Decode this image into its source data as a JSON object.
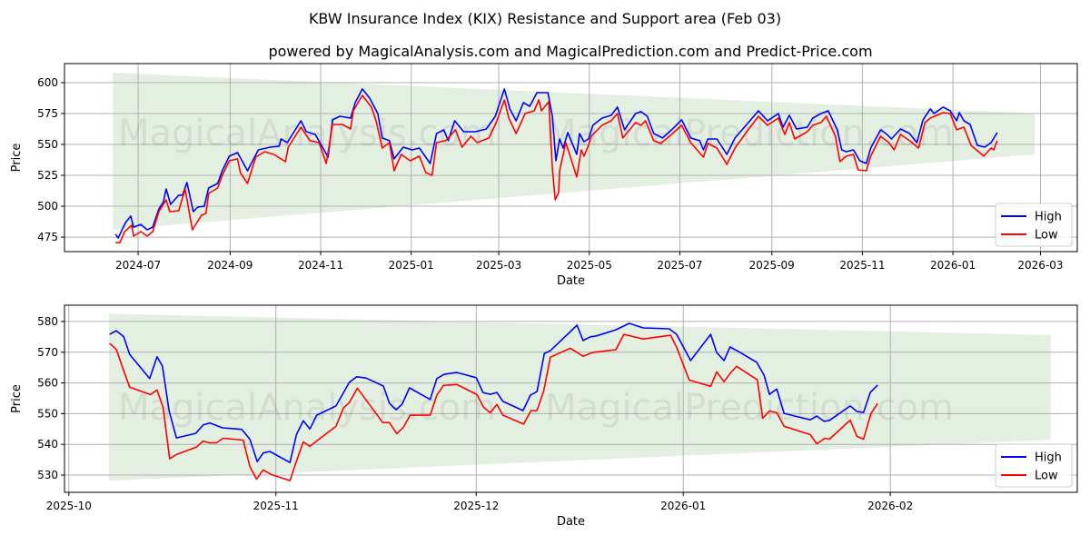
{
  "title": "KBW Insurance Index (KIX) Resistance and Support area (Feb 03)",
  "subtitle": "powered by MagicalAnalysis.com and MagicalPrediction.com and Predict-Price.com",
  "watermarks": [
    "MagicalAnalysis.com",
    "MagicalPrediction.com"
  ],
  "colors": {
    "high": "#0000ff",
    "low": "#ff0000",
    "band": "#e3efe1",
    "grid": "#b0b0b0"
  },
  "chart_data": [
    {
      "type": "line",
      "xlabel": "Date",
      "ylabel": "Price",
      "x_units": "days since 2024-07-01",
      "xlim": [
        -49.6,
        632.8
      ],
      "ylim": [
        463.3,
        615.4
      ],
      "grid": true,
      "legend": "bottom-right",
      "xticks": [
        {
          "v": 0,
          "label": "2024-07"
        },
        {
          "v": 62,
          "label": "2024-09"
        },
        {
          "v": 123,
          "label": "2024-11"
        },
        {
          "v": 184,
          "label": "2025-01"
        },
        {
          "v": 243,
          "label": "2025-03"
        },
        {
          "v": 304,
          "label": "2025-05"
        },
        {
          "v": 365,
          "label": "2025-07"
        },
        {
          "v": 427,
          "label": "2025-09"
        },
        {
          "v": 488,
          "label": "2025-11"
        },
        {
          "v": 549,
          "label": "2026-01"
        },
        {
          "v": 608,
          "label": "2026-03"
        }
      ],
      "yticks": [
        475,
        500,
        525,
        550,
        575,
        600
      ],
      "band": {
        "x": [
          -17,
          604
        ],
        "upper": [
          608,
          575
        ],
        "lower": [
          481,
          542
        ]
      },
      "series": [
        {
          "name": "High",
          "color": "#0000ff",
          "x": [
            -15.2,
            -13.4,
            -8.5,
            -4.9,
            -3.0,
            1.8,
            6.1,
            9.8,
            14.0,
            17.1,
            18.9,
            21.9,
            27.4,
            29.9,
            32.9,
            37.2,
            40.2,
            44.5,
            47.5,
            53.6,
            56.7,
            61.5,
            67.0,
            73.7,
            81.0,
            89.0,
            95.1,
            96.3,
            100.5,
            109.7,
            113.3,
            119.4,
            128.0,
            131.0,
            135.9,
            143.2,
            146.3,
            151.1,
            156.0,
            161.5,
            164.5,
            169.4,
            172.5,
            178.6,
            184.6,
            189.5,
            196.8,
            201.1,
            206.0,
            209.0,
            213.3,
            219.4,
            227.3,
            234.6,
            240.7,
            246.8,
            250.5,
            254.7,
            259.6,
            263.9,
            268.7,
            276.1,
            279.1,
            281.5,
            284.0,
            286.4,
            289.5,
            295.6,
            297.4,
            300.4,
            303.5,
            306.5,
            312.6,
            318.7,
            323.0,
            327.8,
            335.2,
            338.8,
            343.1,
            347.4,
            353.4,
            359.5,
            366.2,
            372.3,
            378.4,
            380.9,
            383.9,
            390.0,
            396.7,
            402.2,
            410.1,
            418.0,
            424.1,
            431.4,
            434.5,
            438.8,
            443.6,
            450.9,
            454.6,
            460.1,
            465.0,
            471.1,
            474.1,
            477.2,
            482.0,
            486.3,
            490.6,
            493.6,
            500.3,
            504.6,
            507.6,
            513.7,
            519.8,
            524.7,
            528.9,
            533.8,
            536.3,
            542.4,
            547.2,
            551.5,
            553.3,
            556.4,
            560.6,
            565.5,
            570.4,
            574.7,
            578.9
          ],
          "y": [
            477.3,
            474.3,
            486.8,
            492.0,
            483.1,
            485.3,
            480.9,
            483.1,
            497.8,
            503.7,
            514.0,
            501.5,
            508.9,
            508.9,
            519.2,
            495.6,
            499.3,
            500.0,
            514.7,
            518.4,
            528.7,
            540.5,
            543.4,
            528.7,
            545.6,
            547.8,
            548.6,
            554.4,
            551.5,
            569.1,
            560.3,
            558.1,
            539.7,
            569.9,
            572.8,
            571.3,
            583.8,
            594.9,
            587.5,
            575.0,
            555.2,
            553.0,
            538.3,
            547.8,
            545.6,
            547.1,
            534.6,
            558.8,
            561.8,
            553.0,
            569.1,
            560.3,
            560.3,
            562.5,
            572.8,
            594.9,
            578.7,
            569.1,
            583.8,
            580.9,
            591.9,
            591.9,
            572.8,
            536.8,
            554.4,
            547.1,
            559.6,
            541.9,
            558.8,
            552.2,
            554.4,
            565.5,
            571.3,
            573.5,
            580.2,
            561.8,
            575.0,
            576.5,
            572.8,
            558.8,
            555.2,
            561.8,
            569.9,
            555.2,
            553.0,
            545.6,
            554.4,
            554.4,
            541.9,
            555.2,
            566.2,
            577.2,
            569.1,
            575.0,
            564.0,
            573.5,
            562.5,
            564.0,
            571.3,
            575.0,
            577.2,
            561.8,
            545.6,
            544.1,
            545.6,
            536.8,
            534.6,
            547.1,
            561.8,
            558.1,
            554.4,
            562.5,
            558.8,
            551.5,
            569.9,
            578.7,
            575.0,
            580.2,
            577.2,
            569.1,
            575.7,
            569.1,
            566.2,
            549.3,
            547.8,
            551.5,
            559.6
          ]
        },
        {
          "name": "Low",
          "color": "#ff0000",
          "x": [
            -15.2,
            -12.2,
            -9.1,
            -4.3,
            -3.0,
            1.8,
            6.1,
            9.8,
            14.0,
            18.9,
            21.3,
            27.4,
            31.7,
            36.6,
            42.7,
            45.7,
            47.5,
            53.6,
            56.7,
            61.5,
            67.0,
            68.9,
            73.7,
            79.2,
            85.3,
            91.4,
            99.3,
            101.2,
            109.7,
            115.8,
            121.9,
            126.8,
            131.0,
            137.7,
            143.2,
            145.0,
            151.1,
            157.2,
            160.3,
            164.5,
            169.4,
            172.5,
            177.3,
            183.4,
            189.5,
            193.8,
            198.1,
            201.1,
            207.2,
            213.9,
            218.2,
            224.3,
            228.5,
            236.4,
            241.3,
            246.8,
            249.8,
            254.7,
            260.8,
            266.9,
            270.0,
            271.8,
            276.7,
            279.1,
            281.0,
            283.4,
            284.0,
            288.2,
            295.6,
            298.6,
            300.4,
            303.5,
            305.3,
            312.6,
            318.7,
            323.0,
            326.6,
            335.2,
            338.8,
            341.9,
            347.4,
            352.2,
            359.5,
            366.2,
            372.3,
            380.9,
            383.9,
            390.0,
            396.7,
            402.2,
            410.1,
            418.0,
            424.1,
            431.4,
            435.7,
            438.8,
            442.4,
            450.9,
            454.6,
            460.1,
            463.7,
            469.8,
            472.9,
            477.2,
            482.0,
            485.1,
            490.6,
            493.6,
            500.3,
            505.8,
            509.4,
            513.7,
            519.8,
            525.9,
            530.2,
            533.8,
            542.4,
            547.2,
            551.5,
            556.4,
            561.2,
            569.8,
            574.7,
            576.5,
            578.9
          ],
          "y": [
            470.6,
            470.6,
            479.5,
            484.6,
            475.8,
            479.5,
            475.8,
            479.5,
            495.6,
            505.2,
            495.6,
            496.4,
            514.0,
            480.9,
            492.7,
            494.2,
            510.3,
            514.7,
            525.0,
            536.8,
            538.3,
            527.2,
            518.4,
            539.7,
            544.1,
            541.9,
            536.1,
            547.8,
            564.0,
            553.0,
            551.5,
            534.6,
            566.2,
            566.2,
            562.5,
            577.2,
            589.7,
            580.2,
            569.1,
            547.1,
            551.5,
            528.7,
            541.9,
            536.8,
            540.5,
            527.2,
            525.0,
            551.5,
            553.0,
            561.8,
            547.8,
            556.6,
            551.5,
            555.2,
            567.7,
            586.0,
            571.3,
            558.8,
            575.0,
            577.2,
            586.0,
            577.2,
            584.6,
            530.9,
            505.2,
            511.1,
            528.7,
            551.5,
            523.6,
            545.6,
            540.5,
            549.3,
            556.6,
            565.5,
            569.1,
            575.0,
            555.2,
            567.7,
            565.5,
            569.1,
            553.0,
            550.8,
            558.1,
            565.5,
            551.5,
            539.7,
            550.8,
            547.1,
            533.9,
            547.1,
            560.3,
            572.8,
            565.5,
            571.3,
            558.1,
            567.7,
            554.4,
            560.3,
            565.5,
            567.7,
            572.8,
            556.6,
            536.1,
            540.5,
            541.9,
            529.4,
            528.7,
            540.5,
            556.6,
            551.5,
            545.6,
            558.1,
            553.0,
            547.1,
            567.7,
            571.3,
            575.7,
            575.0,
            561.8,
            564.0,
            549.3,
            540.5,
            547.1,
            545.6,
            553.0
          ]
        }
      ]
    },
    {
      "type": "line",
      "xlabel": "Date",
      "ylabel": "Price",
      "x_units": "days since 2025-10-01",
      "xlim": [
        -4.6,
        151
      ],
      "ylim": [
        524.4,
        585.3
      ],
      "grid": true,
      "legend": "bottom-right",
      "xticks": [
        {
          "v": 0,
          "label": "2025-10"
        },
        {
          "v": 31,
          "label": "2025-11"
        },
        {
          "v": 61,
          "label": "2025-12"
        },
        {
          "v": 92,
          "label": "2026-01"
        },
        {
          "v": 123,
          "label": "2026-02"
        }
      ],
      "yticks": [
        530,
        540,
        550,
        560,
        570,
        580
      ],
      "band": {
        "x": [
          6,
          147
        ],
        "upper": [
          582.5,
          575.6
        ],
        "lower": [
          528.2,
          541.5
        ]
      },
      "series": [
        {
          "name": "High",
          "color": "#0000ff",
          "x": [
            6.1,
            7.1,
            8.2,
            9.1,
            12.1,
            13.2,
            14.0,
            15.0,
            16.1,
            19.0,
            20.1,
            21.1,
            23.0,
            25.9,
            27.1,
            28.2,
            29.1,
            30.1,
            33.1,
            34.1,
            35.1,
            36.1,
            37.1,
            40.0,
            42.0,
            43.1,
            44.5,
            47.1,
            48.0,
            49.0,
            49.9,
            51.0,
            54.1,
            55.1,
            56.2,
            58.1,
            61.0,
            62.0,
            63.1,
            64.1,
            65.0,
            68.0,
            69.1,
            70.1,
            71.2,
            72.1,
            76.1,
            77.0,
            78.1,
            79.0,
            81.9,
            83.9,
            86.0,
            89.9,
            91.0,
            93.1,
            96.1,
            97.0,
            98.1,
            99.0,
            100.3,
            103.0,
            104.1,
            104.9,
            106.0,
            107.1,
            111.0,
            112.0,
            113.1,
            113.9,
            117.0,
            118.0,
            119.0,
            120.0,
            121.1
          ],
          "y": [
            575.8,
            577.0,
            575.1,
            569.3,
            561.4,
            568.5,
            565.5,
            551.0,
            542.1,
            543.6,
            546.3,
            547.0,
            545.4,
            544.9,
            541.7,
            534.4,
            537.2,
            537.7,
            534.1,
            543.3,
            547.7,
            545.0,
            549.5,
            552.5,
            560.2,
            562.0,
            561.6,
            559.0,
            553.4,
            551.3,
            553.1,
            558.4,
            554.6,
            561.4,
            562.8,
            563.4,
            561.7,
            556.9,
            556.3,
            556.9,
            554.0,
            551.0,
            556.0,
            557.2,
            569.6,
            570.5,
            578.8,
            573.8,
            575.0,
            575.3,
            577.3,
            579.4,
            577.9,
            577.6,
            575.8,
            567.3,
            575.8,
            569.9,
            567.3,
            571.7,
            570.2,
            566.7,
            562.5,
            556.3,
            558.0,
            550.1,
            548.0,
            549.2,
            547.5,
            547.8,
            552.5,
            550.7,
            550.4,
            556.9,
            559.3
          ]
        },
        {
          "name": "Low",
          "color": "#ff0000",
          "x": [
            6.1,
            7.1,
            9.1,
            12.2,
            13.2,
            14.1,
            15.1,
            16.1,
            19.1,
            20.1,
            21.0,
            22.1,
            23.1,
            26.1,
            27.1,
            28.1,
            29.1,
            30.3,
            33.1,
            34.2,
            35.1,
            36.1,
            40.0,
            41.1,
            42.0,
            43.2,
            47.0,
            48.0,
            49.1,
            50.1,
            51.1,
            54.1,
            55.1,
            56.1,
            58.1,
            61.1,
            62.1,
            63.1,
            64.1,
            65.0,
            68.1,
            69.2,
            70.1,
            71.1,
            72.1,
            75.1,
            77.0,
            78.4,
            81.9,
            83.1,
            86.0,
            90.1,
            91.0,
            92.9,
            96.1,
            97.0,
            98.1,
            99.2,
            100.0,
            103.1,
            103.9,
            104.9,
            106.0,
            107.1,
            111.0,
            112.0,
            113.2,
            113.9,
            117.0,
            118.0,
            119.0,
            120.1,
            121.1
          ],
          "y": [
            572.9,
            570.9,
            558.6,
            556.2,
            557.7,
            552.1,
            535.3,
            536.7,
            539.1,
            541.1,
            540.5,
            540.5,
            542.0,
            541.4,
            532.8,
            528.7,
            531.7,
            530.2,
            528.2,
            535.3,
            540.8,
            539.4,
            545.9,
            551.8,
            553.6,
            558.3,
            547.1,
            547.1,
            543.5,
            545.6,
            549.5,
            549.5,
            556.0,
            559.2,
            559.5,
            556.2,
            552.1,
            550.3,
            553.0,
            549.5,
            546.6,
            551.0,
            551.0,
            557.4,
            568.4,
            571.3,
            568.7,
            569.9,
            570.8,
            575.8,
            574.3,
            575.5,
            571.6,
            560.9,
            558.9,
            563.6,
            560.4,
            563.6,
            565.4,
            561.0,
            548.5,
            550.9,
            550.3,
            545.9,
            543.2,
            540.2,
            542.0,
            541.7,
            547.9,
            542.6,
            541.7,
            550.0,
            553.3
          ]
        }
      ]
    }
  ]
}
